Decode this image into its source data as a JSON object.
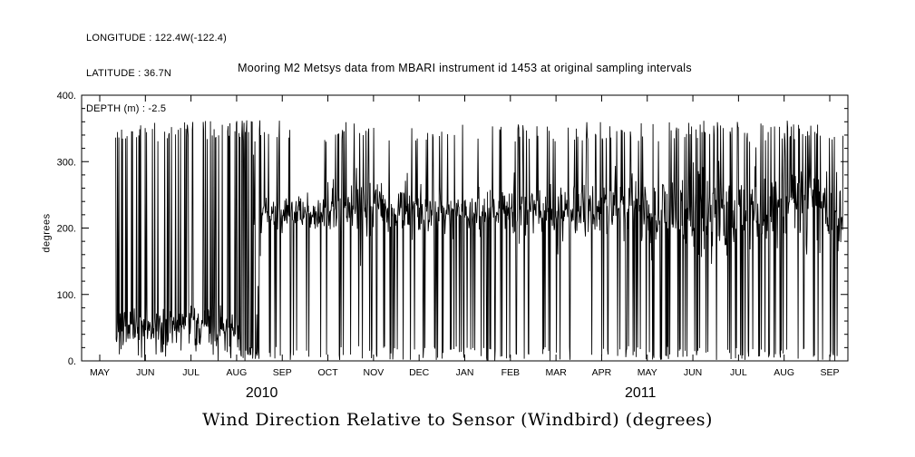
{
  "header": {
    "longitude": "LONGITUDE : 122.4W(-122.4)",
    "latitude": "LATITUDE : 36.7N",
    "depth": "DEPTH (m) : -2.5"
  },
  "chart_data": {
    "type": "line",
    "title": "Mooring M2 Metsys data from MBARI instrument id 1453 at original sampling intervals",
    "bottom_title": "Wind Direction Relative to Sensor (Windbird) (degrees)",
    "ylabel": "degrees",
    "ylim": [
      0,
      400
    ],
    "ytick_values": [
      0,
      100,
      200,
      300,
      400
    ],
    "ytick_labels": [
      "0.",
      "100.",
      "200.",
      "300.",
      "400."
    ],
    "y_minor_step": 20,
    "months": [
      "MAY",
      "JUN",
      "JUL",
      "AUG",
      "SEP",
      "OCT",
      "NOV",
      "DEC",
      "JAN",
      "FEB",
      "MAR",
      "APR",
      "MAY",
      "JUN",
      "JUL",
      "AUG",
      "SEP"
    ],
    "year_labels": [
      {
        "label": "2010",
        "month_index": 3.55
      },
      {
        "label": "2011",
        "month_index": 11.85
      }
    ],
    "line_color": "#000000",
    "grid": false,
    "legend": "none",
    "series": {
      "name": "wind-direction-relative-to-sensor",
      "description": "High-frequency wind direction samples oscillating between 0 and 360 degrees; dense low band near 45 deg May-Aug 2010, solid full-range burst mid-Aug 2010, then dense band near 225 deg with frequent full-range spikes Sep 2010 - Sep 2011",
      "x_start_month": 0.35,
      "x_end_month": 16.3,
      "spike_high_range": [
        330,
        362
      ],
      "spike_low_range": [
        0,
        22
      ],
      "segments": [
        {
          "from": 0.35,
          "to": 3.05,
          "mean": 48,
          "spread": 18,
          "spike_high_prob": 0.2,
          "spike_low_prob": 0.03
        },
        {
          "from": 3.05,
          "to": 3.55,
          "mean": 190,
          "spread": 150,
          "spike_high_prob": 0.3,
          "spike_low_prob": 0.3
        },
        {
          "from": 3.55,
          "to": 5.0,
          "mean": 222,
          "spread": 13,
          "spike_high_prob": 0.05,
          "spike_low_prob": 0.07
        },
        {
          "from": 5.0,
          "to": 7.0,
          "mean": 227,
          "spread": 20,
          "spike_high_prob": 0.1,
          "spike_low_prob": 0.11
        },
        {
          "from": 7.0,
          "to": 9.0,
          "mean": 222,
          "spread": 18,
          "spike_high_prob": 0.08,
          "spike_low_prob": 0.12
        },
        {
          "from": 9.0,
          "to": 11.0,
          "mean": 225,
          "spread": 20,
          "spike_high_prob": 0.1,
          "spike_low_prob": 0.12
        },
        {
          "from": 11.0,
          "to": 13.0,
          "mean": 228,
          "spread": 26,
          "spike_high_prob": 0.12,
          "spike_low_prob": 0.14
        },
        {
          "from": 13.0,
          "to": 16.3,
          "mean": 230,
          "spread": 34,
          "spike_high_prob": 0.15,
          "spike_low_prob": 0.12
        }
      ]
    }
  }
}
